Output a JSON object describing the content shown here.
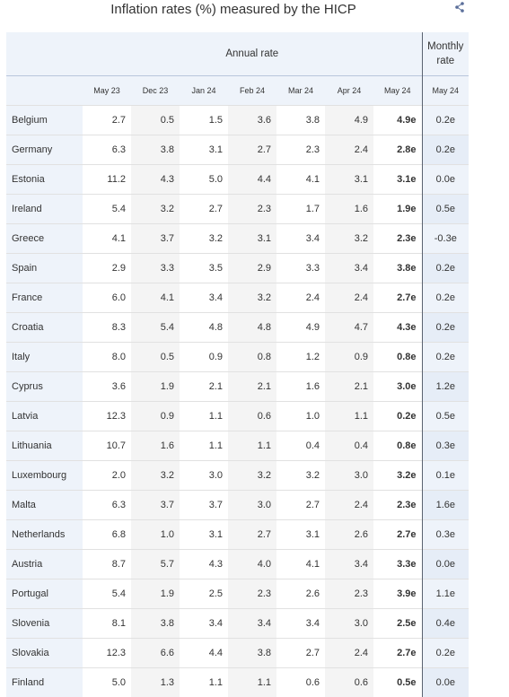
{
  "title": "Inflation rates (%) measured by the HICP",
  "share_icon": "share-icon",
  "colors": {
    "header_bg": "#eef3fa",
    "stripe_bg": "#f4f4f4",
    "divider": "#5a6270"
  },
  "chart_data": {
    "type": "table",
    "title": "Inflation rates (%) measured by the HICP",
    "group_headers": [
      "Annual rate",
      "Monthly rate"
    ],
    "columns": [
      "May 23",
      "Dec 23",
      "Jan 24",
      "Feb 24",
      "Mar 24",
      "Apr 24",
      "May 24",
      "May 24"
    ],
    "rows": [
      {
        "country": "Belgium",
        "values": [
          "2.7",
          "0.5",
          "1.5",
          "3.6",
          "3.8",
          "4.9",
          "4.9e",
          "0.2e"
        ]
      },
      {
        "country": "Germany",
        "values": [
          "6.3",
          "3.8",
          "3.1",
          "2.7",
          "2.3",
          "2.4",
          "2.8e",
          "0.2e"
        ]
      },
      {
        "country": "Estonia",
        "values": [
          "11.2",
          "4.3",
          "5.0",
          "4.4",
          "4.1",
          "3.1",
          "3.1e",
          "0.0e"
        ]
      },
      {
        "country": "Ireland",
        "values": [
          "5.4",
          "3.2",
          "2.7",
          "2.3",
          "1.7",
          "1.6",
          "1.9e",
          "0.5e"
        ]
      },
      {
        "country": "Greece",
        "values": [
          "4.1",
          "3.7",
          "3.2",
          "3.1",
          "3.4",
          "3.2",
          "2.3e",
          "-0.3e"
        ]
      },
      {
        "country": "Spain",
        "values": [
          "2.9",
          "3.3",
          "3.5",
          "2.9",
          "3.3",
          "3.4",
          "3.8e",
          "0.2e"
        ]
      },
      {
        "country": "France",
        "values": [
          "6.0",
          "4.1",
          "3.4",
          "3.2",
          "2.4",
          "2.4",
          "2.7e",
          "0.2e"
        ]
      },
      {
        "country": "Croatia",
        "values": [
          "8.3",
          "5.4",
          "4.8",
          "4.8",
          "4.9",
          "4.7",
          "4.3e",
          "0.2e"
        ]
      },
      {
        "country": "Italy",
        "values": [
          "8.0",
          "0.5",
          "0.9",
          "0.8",
          "1.2",
          "0.9",
          "0.8e",
          "0.2e"
        ]
      },
      {
        "country": "Cyprus",
        "values": [
          "3.6",
          "1.9",
          "2.1",
          "2.1",
          "1.6",
          "2.1",
          "3.0e",
          "1.2e"
        ]
      },
      {
        "country": "Latvia",
        "values": [
          "12.3",
          "0.9",
          "1.1",
          "0.6",
          "1.0",
          "1.1",
          "0.2e",
          "0.5e"
        ]
      },
      {
        "country": "Lithuania",
        "values": [
          "10.7",
          "1.6",
          "1.1",
          "1.1",
          "0.4",
          "0.4",
          "0.8e",
          "0.3e"
        ]
      },
      {
        "country": "Luxembourg",
        "values": [
          "2.0",
          "3.2",
          "3.0",
          "3.2",
          "3.2",
          "3.0",
          "3.2e",
          "0.1e"
        ]
      },
      {
        "country": "Malta",
        "values": [
          "6.3",
          "3.7",
          "3.7",
          "3.0",
          "2.7",
          "2.4",
          "2.3e",
          "1.6e"
        ]
      },
      {
        "country": "Netherlands",
        "values": [
          "6.8",
          "1.0",
          "3.1",
          "2.7",
          "3.1",
          "2.6",
          "2.7e",
          "0.3e"
        ]
      },
      {
        "country": "Austria",
        "values": [
          "8.7",
          "5.7",
          "4.3",
          "4.0",
          "4.1",
          "3.4",
          "3.3e",
          "0.0e"
        ]
      },
      {
        "country": "Portugal",
        "values": [
          "5.4",
          "1.9",
          "2.5",
          "2.3",
          "2.6",
          "2.3",
          "3.9e",
          "1.1e"
        ]
      },
      {
        "country": "Slovenia",
        "values": [
          "8.1",
          "3.8",
          "3.4",
          "3.4",
          "3.4",
          "3.0",
          "2.5e",
          "0.4e"
        ]
      },
      {
        "country": "Slovakia",
        "values": [
          "12.3",
          "6.6",
          "4.4",
          "3.8",
          "2.7",
          "2.4",
          "2.7e",
          "0.2e"
        ]
      },
      {
        "country": "Finland",
        "values": [
          "5.0",
          "1.3",
          "1.1",
          "1.1",
          "0.6",
          "0.6",
          "0.5e",
          "0.0e"
        ]
      }
    ]
  }
}
